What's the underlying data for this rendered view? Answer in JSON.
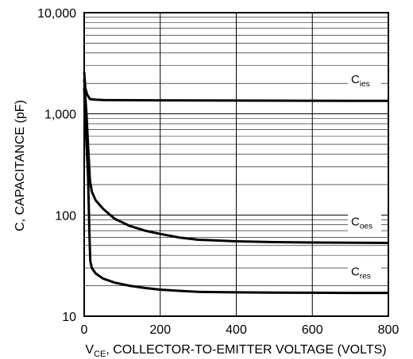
{
  "chart_data": {
    "type": "line",
    "title": "",
    "xlabel_prefix": "V",
    "xlabel_sub": "CE",
    "xlabel_rest": ", COLLECTOR-TO-EMITTER VOLTAGE (VOLTS)",
    "ylabel": "C, CAPACITANCE (pF)",
    "xlim": [
      0,
      800
    ],
    "ylim": [
      10,
      10000
    ],
    "yscale": "log",
    "grid": true,
    "x_ticks": [
      0,
      200,
      400,
      600,
      800
    ],
    "x_tick_labels": [
      "0",
      "200",
      "400",
      "600",
      "800"
    ],
    "y_ticks": [
      10,
      100,
      1000,
      10000
    ],
    "y_tick_labels": [
      "10",
      "100",
      "1,000",
      "10,000"
    ],
    "series": [
      {
        "name_main": "C",
        "name_sub": "ies",
        "x": [
          0,
          3,
          8,
          15,
          30,
          50,
          100,
          200,
          300,
          400,
          500,
          600,
          700,
          800
        ],
        "y": [
          2600,
          1800,
          1550,
          1400,
          1380,
          1370,
          1365,
          1360,
          1355,
          1352,
          1350,
          1348,
          1346,
          1345
        ]
      },
      {
        "name_main": "C",
        "name_sub": "oes",
        "x": [
          0,
          3,
          6,
          10,
          15,
          20,
          30,
          50,
          80,
          120,
          160,
          200,
          250,
          300,
          400,
          500,
          600,
          700,
          800
        ],
        "y": [
          2200,
          1500,
          1000,
          500,
          220,
          170,
          140,
          115,
          92,
          78,
          70,
          65,
          60,
          57,
          55,
          54,
          53.5,
          53.2,
          53
        ]
      },
      {
        "name_main": "C",
        "name_sub": "res",
        "x": [
          0,
          3,
          6,
          10,
          14,
          16,
          20,
          30,
          50,
          80,
          120,
          160,
          200,
          250,
          300,
          400,
          500,
          600,
          700,
          800
        ],
        "y": [
          1800,
          1000,
          500,
          250,
          60,
          35,
          30,
          26.5,
          23.5,
          21.5,
          20,
          19,
          18.3,
          17.8,
          17.4,
          17.2,
          17.1,
          17.05,
          17,
          17
        ]
      }
    ]
  }
}
